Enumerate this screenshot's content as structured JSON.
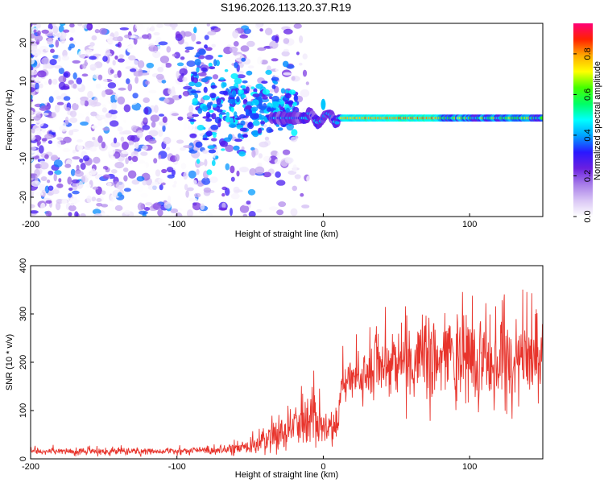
{
  "title": "S196.2026.113.20.37.R19",
  "colors": {
    "spectrogram_hue_start": "#ffffff",
    "snr_line": "#e8342c",
    "axis": "#000000"
  },
  "colorbar": {
    "label": "Normalized spectral amplitude",
    "range": [
      0.0,
      0.95
    ],
    "ticks": [
      0.0,
      0.2,
      0.4,
      0.6,
      0.8
    ],
    "tick_labels": [
      "0.0",
      "0.2",
      "0.4",
      "0.6",
      "0.8"
    ],
    "palette": [
      "#ffffff",
      "#d9c6f5",
      "#a77ce8",
      "#6a1fe0",
      "#2a18ff",
      "#00a0ff",
      "#00ffff",
      "#00ff66",
      "#44ff00",
      "#ffff00",
      "#ffaa00",
      "#ff2200",
      "#ff0077"
    ]
  },
  "chart_data": [
    {
      "type": "heatmap",
      "title": "S196.2026.113.20.37.R19",
      "xlabel": "Height of straight line (km)",
      "ylabel": "Frequency (Hz)",
      "xlim": [
        -200,
        150
      ],
      "ylim": [
        -25,
        25
      ],
      "xticks": [
        -200,
        -100,
        0,
        100
      ],
      "xtick_labels": [
        "-200",
        "-100",
        "0",
        "100"
      ],
      "yticks": [
        -20,
        -10,
        0,
        10,
        20
      ],
      "ytick_labels": [
        "-20",
        "-10",
        "0",
        "10",
        "20"
      ],
      "features": {
        "noise_region": [
          -200,
          -20
        ],
        "coherent_onset_km": -90,
        "tone_frequency_hz": 0.5,
        "tone_band_hz": 1.5,
        "peak_amplitude_region": [
          12,
          80
        ]
      }
    },
    {
      "type": "line",
      "xlabel": "Height of straight line (km)",
      "ylabel": "SNR (10 * v/v)",
      "xlim": [
        -200,
        150
      ],
      "ylim": [
        0,
        400
      ],
      "xticks": [
        -200,
        -100,
        0,
        100
      ],
      "xtick_labels": [
        "-200",
        "-100",
        "0",
        "100"
      ],
      "yticks": [
        0,
        100,
        200,
        300,
        400
      ],
      "ytick_labels": [
        "0",
        "100",
        "200",
        "300",
        "400"
      ],
      "series": [
        {
          "name": "SNR",
          "envelope": {
            "x": [
              -200,
              -150,
              -100,
              -70,
              -50,
              -40,
              -30,
              -20,
              -10,
              0,
              10,
              12,
              20,
              30,
              40,
              60,
              80,
              100,
              120,
              140,
              150
            ],
            "baseline": [
              15,
              15,
              16,
              18,
              25,
              40,
              55,
              70,
              85,
              70,
              60,
              150,
              160,
              175,
              200,
              200,
              200,
              210,
              200,
              200,
              210
            ],
            "spread": [
              8,
              8,
              9,
              12,
              20,
              30,
              45,
              60,
              70,
              50,
              40,
              40,
              50,
              60,
              70,
              90,
              110,
              120,
              100,
              100,
              80
            ]
          }
        }
      ]
    }
  ]
}
